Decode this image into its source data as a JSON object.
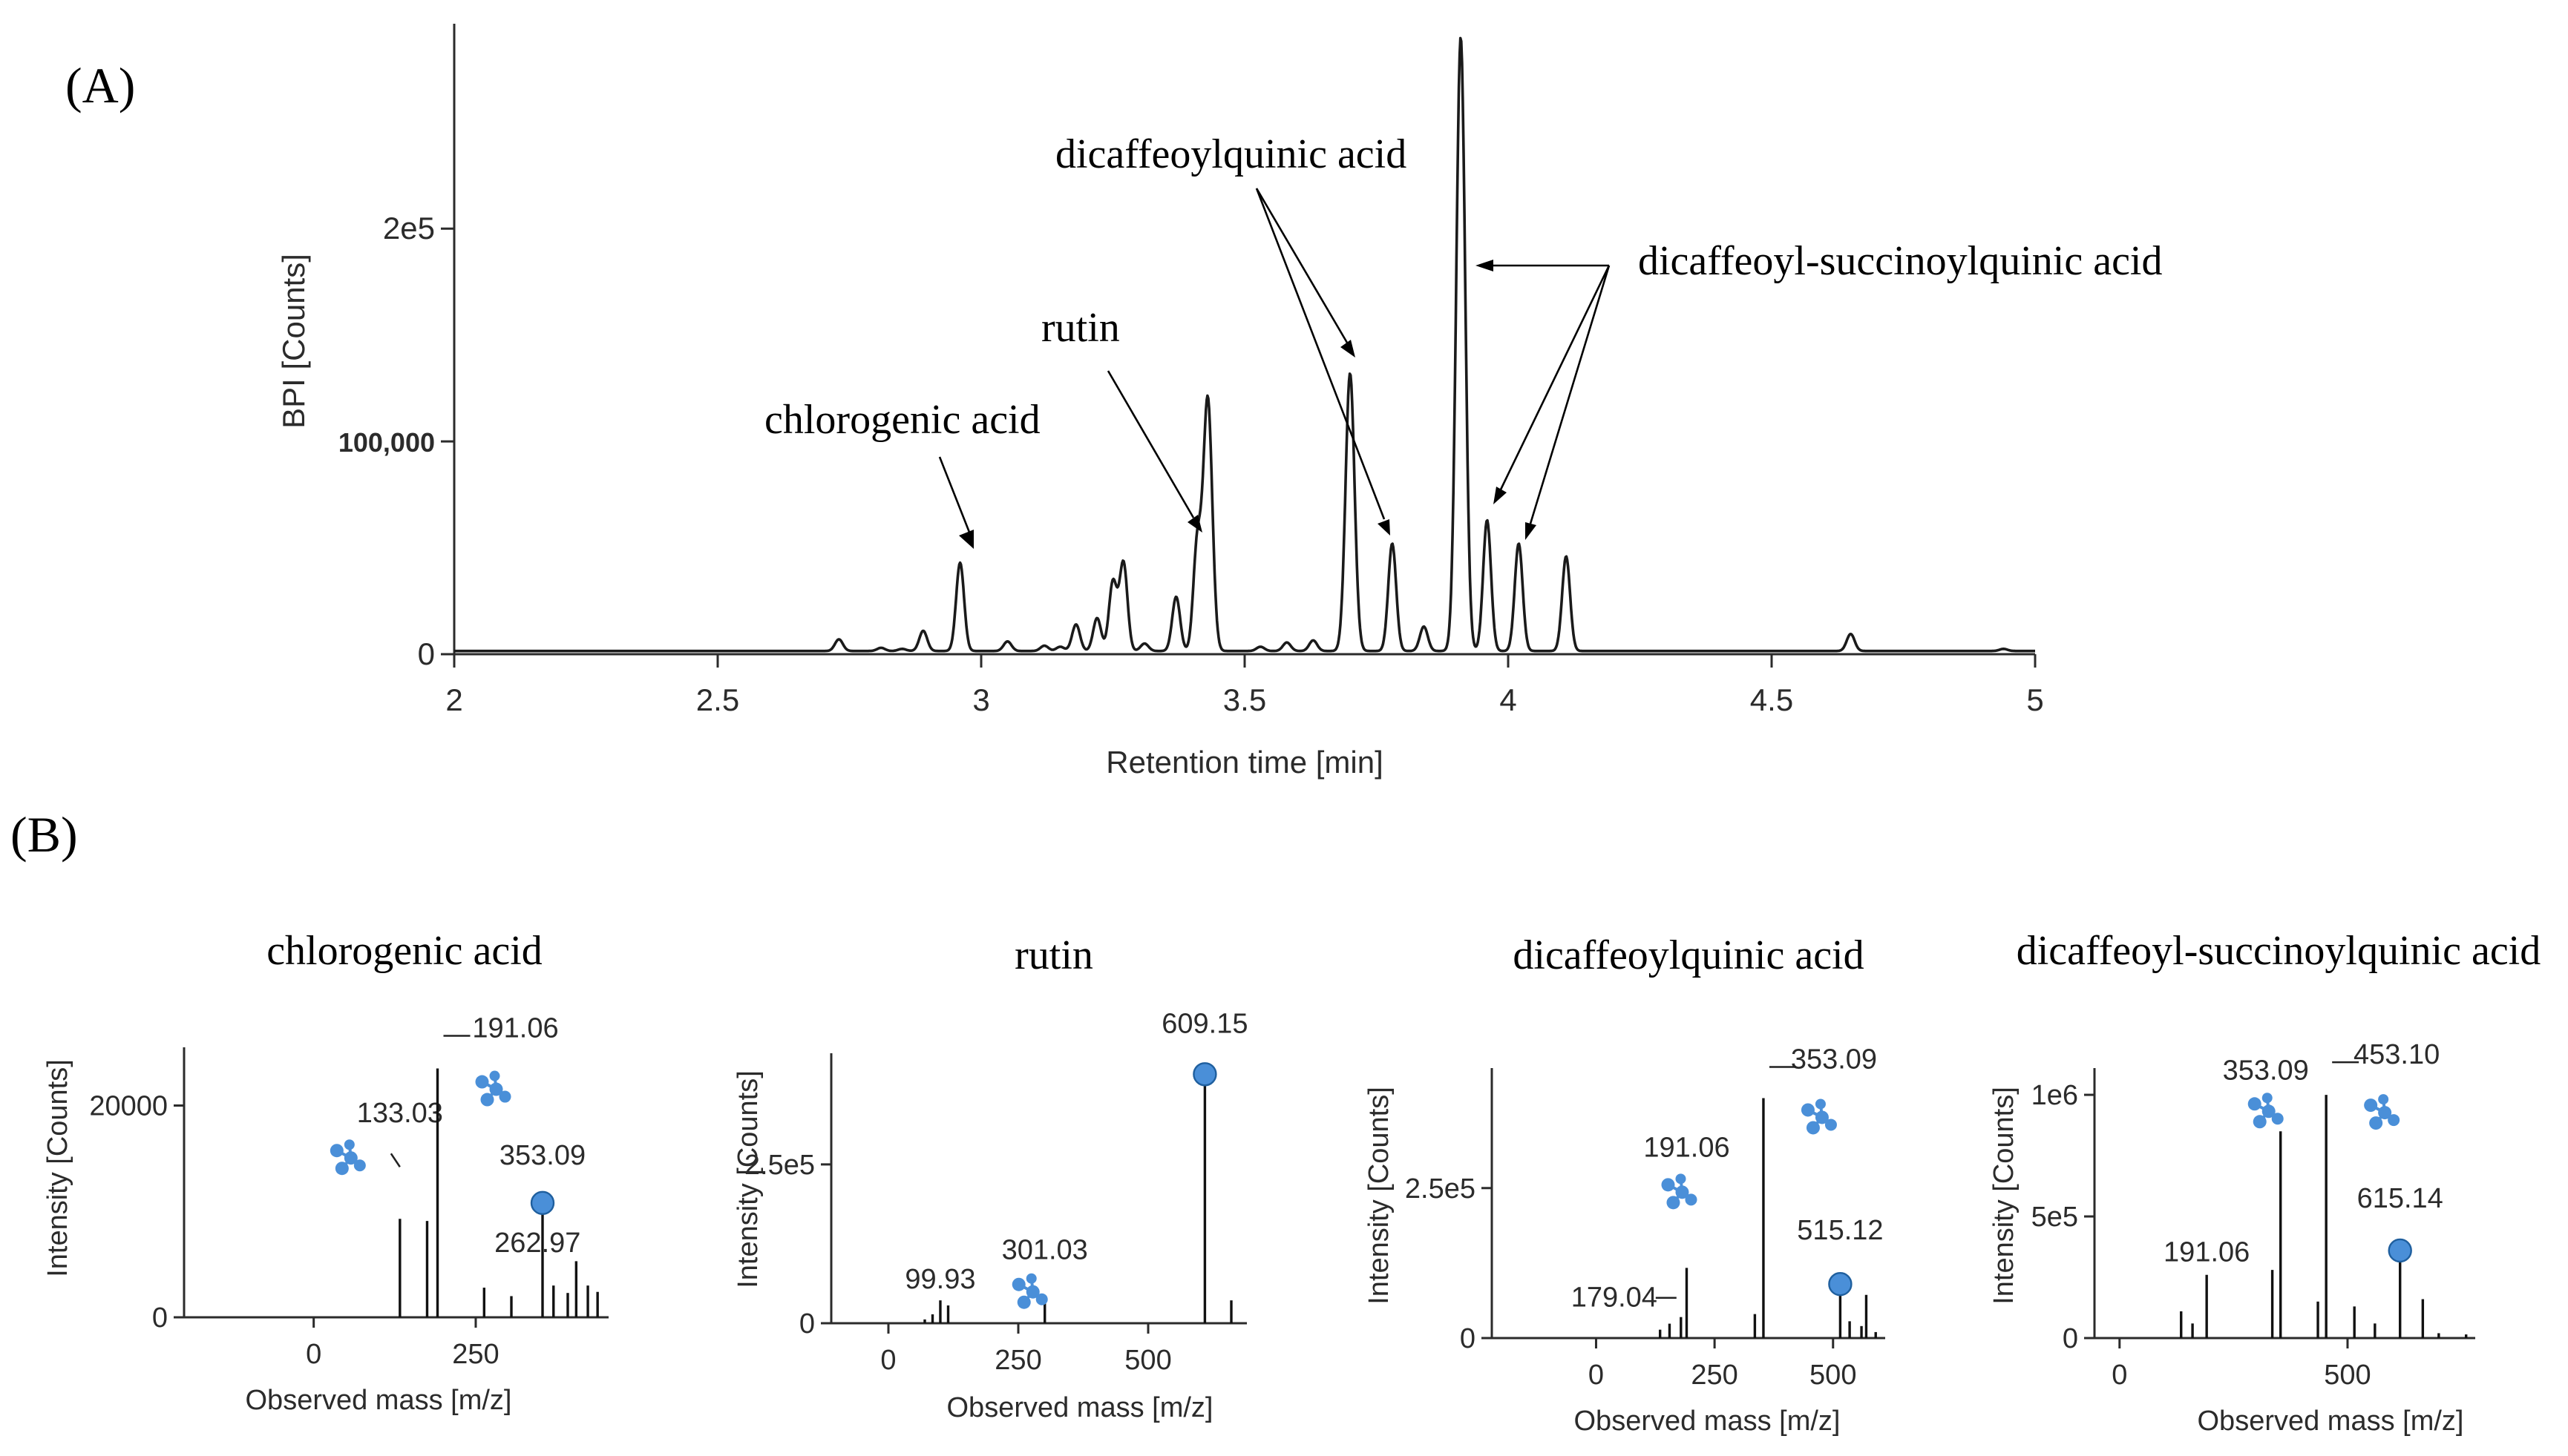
{
  "colors": {
    "trace": "#1a1a1a",
    "axis": "#2b2b2b",
    "annotation": "#000000",
    "precursor_marker": "#4a8fd8",
    "fragment_icon": "#4a8fd8"
  },
  "panel_a": {
    "label": "(A)",
    "annotations": {
      "chlorogenic": "chlorogenic acid",
      "rutin": "rutin",
      "dicq": "dicaffeoylquinic acid",
      "dsq": "dicaffeoyl-succinoylquinic acid"
    }
  },
  "panel_b": {
    "label": "(B)"
  },
  "chart_data": [
    {
      "type": "line",
      "xlabel": "Retention time [min]",
      "ylabel": "BPI [Counts]",
      "xlim": [
        2,
        5
      ],
      "ylim": [
        0,
        290000
      ],
      "xticks": [
        "2",
        "2.5",
        "3",
        "3.5",
        "4",
        "4.5",
        "5"
      ],
      "yticks": [
        "0",
        "100,000",
        "2e5"
      ],
      "baseline": 1500,
      "peaks": [
        {
          "x": 2.47,
          "y": 1500
        },
        {
          "x": 2.73,
          "y": 7000
        },
        {
          "x": 2.81,
          "y": 3000
        },
        {
          "x": 2.85,
          "y": 2500
        },
        {
          "x": 2.89,
          "y": 11000
        },
        {
          "x": 2.96,
          "y": 43000
        },
        {
          "x": 3.05,
          "y": 6000
        },
        {
          "x": 3.12,
          "y": 4000
        },
        {
          "x": 3.15,
          "y": 3500
        },
        {
          "x": 3.18,
          "y": 14000
        },
        {
          "x": 3.22,
          "y": 17000
        },
        {
          "x": 3.25,
          "y": 34000
        },
        {
          "x": 3.27,
          "y": 43000
        },
        {
          "x": 3.31,
          "y": 5000
        },
        {
          "x": 3.37,
          "y": 27000
        },
        {
          "x": 3.41,
          "y": 51000
        },
        {
          "x": 3.43,
          "y": 120000
        },
        {
          "x": 3.53,
          "y": 3500
        },
        {
          "x": 3.58,
          "y": 5500
        },
        {
          "x": 3.63,
          "y": 6500
        },
        {
          "x": 3.7,
          "y": 132000
        },
        {
          "x": 3.78,
          "y": 52000
        },
        {
          "x": 3.84,
          "y": 13000
        },
        {
          "x": 3.91,
          "y": 290000
        },
        {
          "x": 3.96,
          "y": 63000
        },
        {
          "x": 4.02,
          "y": 52000
        },
        {
          "x": 4.11,
          "y": 46000
        },
        {
          "x": 4.65,
          "y": 9500
        },
        {
          "x": 4.94,
          "y": 2500
        }
      ]
    },
    {
      "type": "bar",
      "title": "chlorogenic acid",
      "xlabel": "Observed mass [m/z]",
      "ylabel": "Intensity [Counts]",
      "xlim": [
        -200,
        455
      ],
      "ylim": [
        0,
        25500
      ],
      "xticks": [
        "0",
        "250"
      ],
      "yticks": [
        "0",
        "20000"
      ],
      "sticks": [
        {
          "x": 133.03,
          "y": 9300,
          "label": "133.03",
          "fragment": true
        },
        {
          "x": 175,
          "y": 9100
        },
        {
          "x": 191.06,
          "y": 23500,
          "label": "191.06",
          "fragment": true
        },
        {
          "x": 262.97,
          "y": 2800,
          "label": "262.97"
        },
        {
          "x": 305,
          "y": 2000
        },
        {
          "x": 353.09,
          "y": 10800,
          "label": "353.09",
          "precursor": true
        },
        {
          "x": 370,
          "y": 3000
        },
        {
          "x": 392,
          "y": 2300
        },
        {
          "x": 405,
          "y": 5300
        },
        {
          "x": 423,
          "y": 3000
        },
        {
          "x": 438,
          "y": 2400
        }
      ]
    },
    {
      "type": "bar",
      "title": "rutin",
      "xlabel": "Observed mass [m/z]",
      "ylabel": "Intensity [Counts]",
      "xlim": [
        -110,
        690
      ],
      "ylim": [
        0,
        425000
      ],
      "xticks": [
        "0",
        "250",
        "500"
      ],
      "yticks": [
        "0",
        "2.5e5"
      ],
      "sticks": [
        {
          "x": 70,
          "y": 6000
        },
        {
          "x": 85,
          "y": 14000
        },
        {
          "x": 99.93,
          "y": 36000,
          "label": "99.93"
        },
        {
          "x": 115,
          "y": 28000
        },
        {
          "x": 301.03,
          "y": 33000,
          "label": "301.03",
          "fragment": true
        },
        {
          "x": 609.15,
          "y": 392000,
          "label": "609.15",
          "precursor": true
        },
        {
          "x": 660,
          "y": 36000
        }
      ]
    },
    {
      "type": "bar",
      "title": "dicaffeoylquinic acid",
      "xlabel": "Observed mass [m/z]",
      "ylabel": "Intensity [Counts]",
      "xlim": [
        -220,
        610
      ],
      "ylim": [
        0,
        450000
      ],
      "xticks": [
        "0",
        "250",
        "500"
      ],
      "yticks": [
        "0",
        "2.5e5"
      ],
      "sticks": [
        {
          "x": 135,
          "y": 14000
        },
        {
          "x": 155,
          "y": 24000
        },
        {
          "x": 179.04,
          "y": 35000,
          "label": "179.04"
        },
        {
          "x": 191.06,
          "y": 117000,
          "label": "191.06",
          "fragment": true
        },
        {
          "x": 335,
          "y": 40000
        },
        {
          "x": 353.09,
          "y": 400000,
          "label": "353.09",
          "fragment": true
        },
        {
          "x": 515.12,
          "y": 90000,
          "label": "515.12",
          "precursor": true
        },
        {
          "x": 535,
          "y": 28000
        },
        {
          "x": 560,
          "y": 20000
        },
        {
          "x": 570,
          "y": 72000
        },
        {
          "x": 590,
          "y": 10000
        }
      ]
    },
    {
      "type": "bar",
      "title": "dicaffeoyl-succinoylquinic acid",
      "xlabel": "Observed mass [m/z]",
      "ylabel": "Intensity [Counts]",
      "xlim": [
        -55,
        780
      ],
      "ylim": [
        0,
        1110000
      ],
      "xticks": [
        "0",
        "500"
      ],
      "yticks": [
        "0",
        "5e5",
        "1e6"
      ],
      "sticks": [
        {
          "x": 135,
          "y": 110000
        },
        {
          "x": 160,
          "y": 60000
        },
        {
          "x": 191.06,
          "y": 260000,
          "label": "191.06"
        },
        {
          "x": 335,
          "y": 280000
        },
        {
          "x": 353.09,
          "y": 850000,
          "label": "353.09",
          "fragment": true
        },
        {
          "x": 435,
          "y": 150000
        },
        {
          "x": 453.1,
          "y": 1000000,
          "label": "453.10",
          "fragment": true
        },
        {
          "x": 515,
          "y": 130000
        },
        {
          "x": 560,
          "y": 60000
        },
        {
          "x": 615.14,
          "y": 360000,
          "label": "615.14",
          "precursor": true
        },
        {
          "x": 665,
          "y": 160000
        },
        {
          "x": 700,
          "y": 20000
        },
        {
          "x": 760,
          "y": 15000
        }
      ]
    }
  ]
}
